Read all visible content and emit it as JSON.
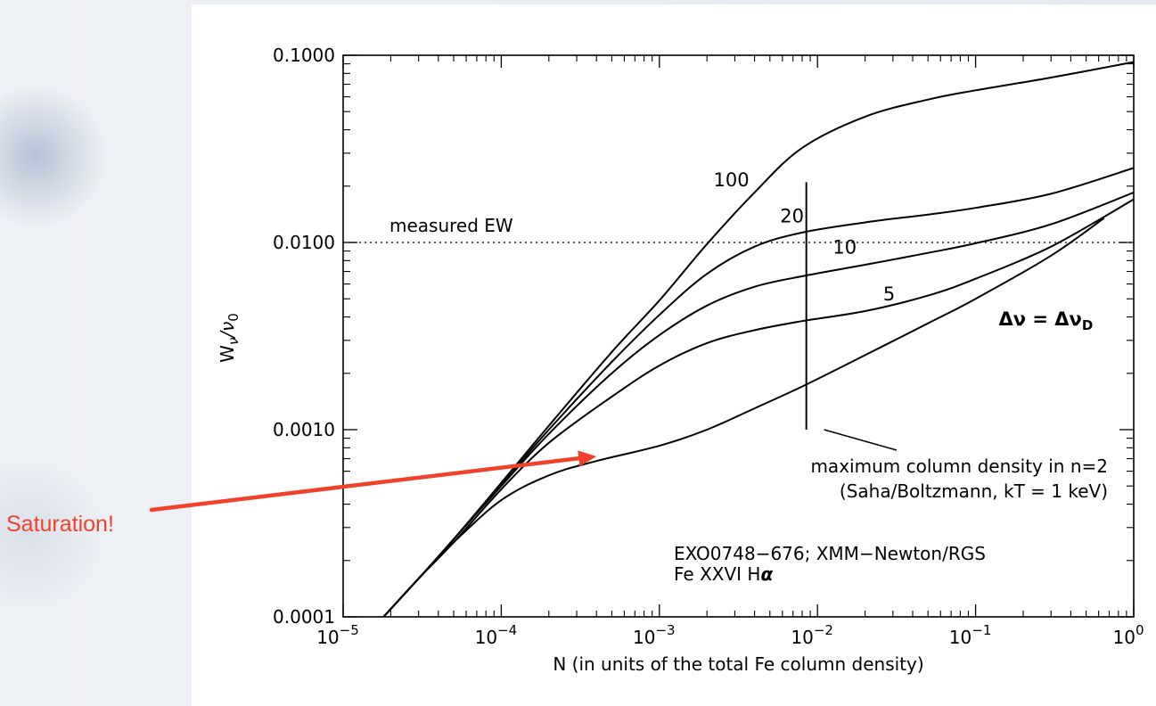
{
  "callout": {
    "text": "Saturation!",
    "color": "#f0412a"
  },
  "chart_data": {
    "type": "line",
    "xlabel": "N (in units of the total Fe column density)",
    "ylabel_base": "W",
    "ylabel_sub_top": "ν",
    "ylabel_mid": "/ν",
    "ylabel_sub_bottom": "0",
    "x_scale": "log",
    "y_scale": "log",
    "xlim": [
      1e-05,
      1
    ],
    "ylim": [
      0.0001,
      0.1
    ],
    "grid": false,
    "x_ticks": [
      {
        "value": 1e-05,
        "base": "10",
        "exp": "−5"
      },
      {
        "value": 0.0001,
        "base": "10",
        "exp": "−4"
      },
      {
        "value": 0.001,
        "base": "10",
        "exp": "−3"
      },
      {
        "value": 0.01,
        "base": "10",
        "exp": "−2"
      },
      {
        "value": 0.1,
        "base": "10",
        "exp": "−1"
      },
      {
        "value": 1,
        "base": "10",
        "exp": "0"
      }
    ],
    "y_ticks": [
      {
        "value": 0.0001,
        "label": "0.0001"
      },
      {
        "value": 0.001,
        "label": "0.0010"
      },
      {
        "value": 0.01,
        "label": "0.0100"
      },
      {
        "value": 0.1,
        "label": "0.1000"
      }
    ],
    "series": [
      {
        "name": "100",
        "label_at": [
          0.0022,
          0.02
        ],
        "x": [
          1.8e-05,
          3e-05,
          5e-05,
          0.0001,
          0.0002,
          0.0005,
          0.001,
          0.002,
          0.004,
          0.008,
          0.02,
          0.05,
          0.1,
          0.3,
          1
        ],
        "y": [
          0.0001,
          0.00016,
          0.00026,
          0.00052,
          0.00105,
          0.0026,
          0.0049,
          0.0098,
          0.0185,
          0.032,
          0.047,
          0.058,
          0.065,
          0.076,
          0.092
        ]
      },
      {
        "name": "20",
        "label_at": [
          0.0058,
          0.0128
        ],
        "x": [
          1.8e-05,
          3e-05,
          5e-05,
          0.0001,
          0.0002,
          0.0005,
          0.001,
          0.002,
          0.004,
          0.008,
          0.02,
          0.05,
          0.1,
          0.3,
          1
        ],
        "y": [
          0.0001,
          0.00016,
          0.00026,
          0.00051,
          0.001,
          0.0023,
          0.0041,
          0.0068,
          0.0095,
          0.0113,
          0.0128,
          0.0141,
          0.0153,
          0.0182,
          0.025
        ]
      },
      {
        "name": "10",
        "label_at": [
          0.0125,
          0.0087
        ],
        "x": [
          1.8e-05,
          3e-05,
          5e-05,
          0.0001,
          0.0002,
          0.0005,
          0.001,
          0.002,
          0.004,
          0.008,
          0.02,
          0.05,
          0.1,
          0.3,
          1
        ],
        "y": [
          0.0001,
          0.00016,
          0.00026,
          0.0005,
          0.00095,
          0.002,
          0.0032,
          0.0046,
          0.0058,
          0.0066,
          0.0076,
          0.0088,
          0.0099,
          0.0125,
          0.0185
        ]
      },
      {
        "name": "5",
        "label_at": [
          0.026,
          0.0049
        ],
        "x": [
          1.8e-05,
          3e-05,
          5e-05,
          0.0001,
          0.0002,
          0.0005,
          0.001,
          0.002,
          0.004,
          0.008,
          0.02,
          0.05,
          0.1,
          0.3,
          1
        ],
        "y": [
          0.0001,
          0.00016,
          0.00025,
          0.00048,
          0.00085,
          0.0015,
          0.0022,
          0.0029,
          0.0034,
          0.0038,
          0.0043,
          0.0052,
          0.0064,
          0.0095,
          0.017
        ]
      },
      {
        "name": "Δν = Δν",
        "name_sub": "D",
        "label_at": [
          0.14,
          0.0036
        ],
        "x": [
          1.8e-05,
          3e-05,
          5e-05,
          0.0001,
          0.0002,
          0.0004,
          0.001,
          0.002,
          0.004,
          0.008,
          0.02,
          0.05,
          0.1,
          0.3,
          0.65
        ],
        "y": [
          0.0001,
          0.00016,
          0.00025,
          0.00042,
          0.00057,
          0.00068,
          0.00082,
          0.001,
          0.0013,
          0.0017,
          0.0025,
          0.0037,
          0.005,
          0.0085,
          0.0135
        ]
      }
    ],
    "reference_line": {
      "label": "measured EW",
      "y": 0.01,
      "style": "dotted"
    },
    "vertical_marker": {
      "x": 0.0085,
      "y_range": [
        0.001,
        0.021
      ]
    },
    "annotations": [
      {
        "text": "maximum column density in n=2",
        "pointer_from": [
          0.011,
          0.001
        ]
      },
      {
        "text": "(Saha/Boltzmann, kT = 1 keV)"
      },
      {
        "text": "EXO0748−676; XMM−Newton/RGS"
      },
      {
        "text": "Fe XXVI H",
        "alpha": "α"
      }
    ],
    "arrow": {
      "color": "#f0412a",
      "to": [
        0.0004,
        0.00072
      ]
    }
  }
}
